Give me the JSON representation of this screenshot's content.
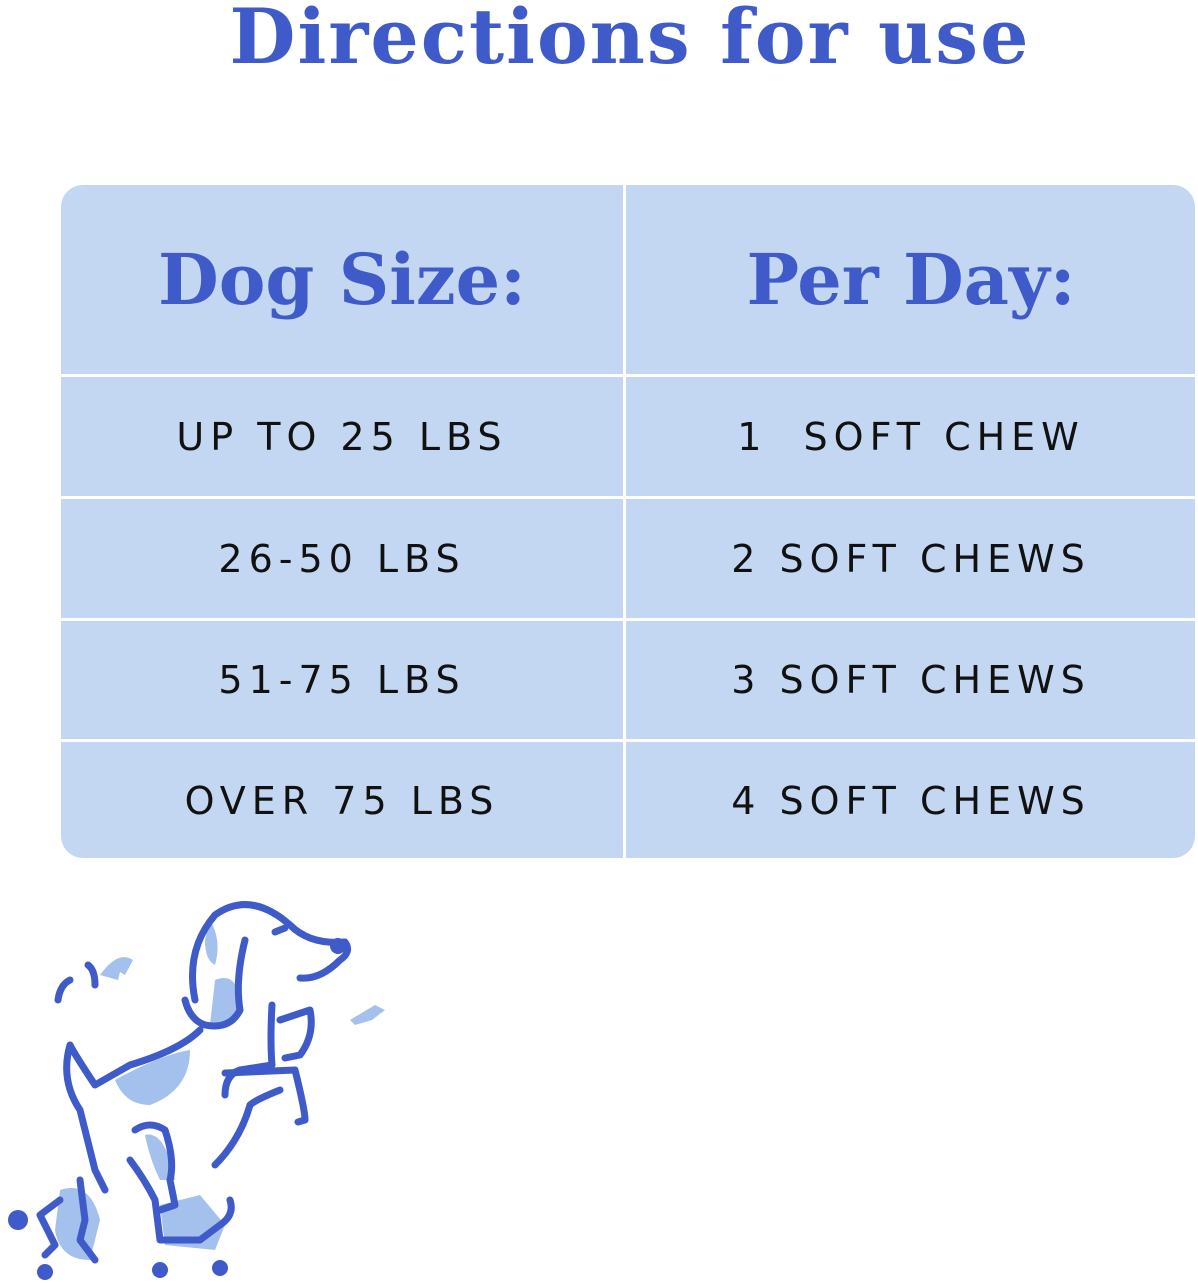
{
  "title": "Directions for use",
  "table": {
    "headers": [
      "Dog Size:",
      "Per Day:"
    ],
    "rows": [
      [
        "UP TO 25 LBS",
        "1  SOFT CHEW"
      ],
      [
        "26-50 LBS",
        "2 SOFT CHEWS"
      ],
      [
        "51-75 LBS",
        "3 SOFT CHEWS"
      ],
      [
        "OVER 75 LBS",
        "4 SOFT CHEWS"
      ]
    ]
  },
  "colors": {
    "accent": "#3e5bc9",
    "table_bg": "#c4d7f2",
    "light_blue": "#a4c0ec"
  },
  "illustration": "dancing-dog-on-roller-skates-icon"
}
